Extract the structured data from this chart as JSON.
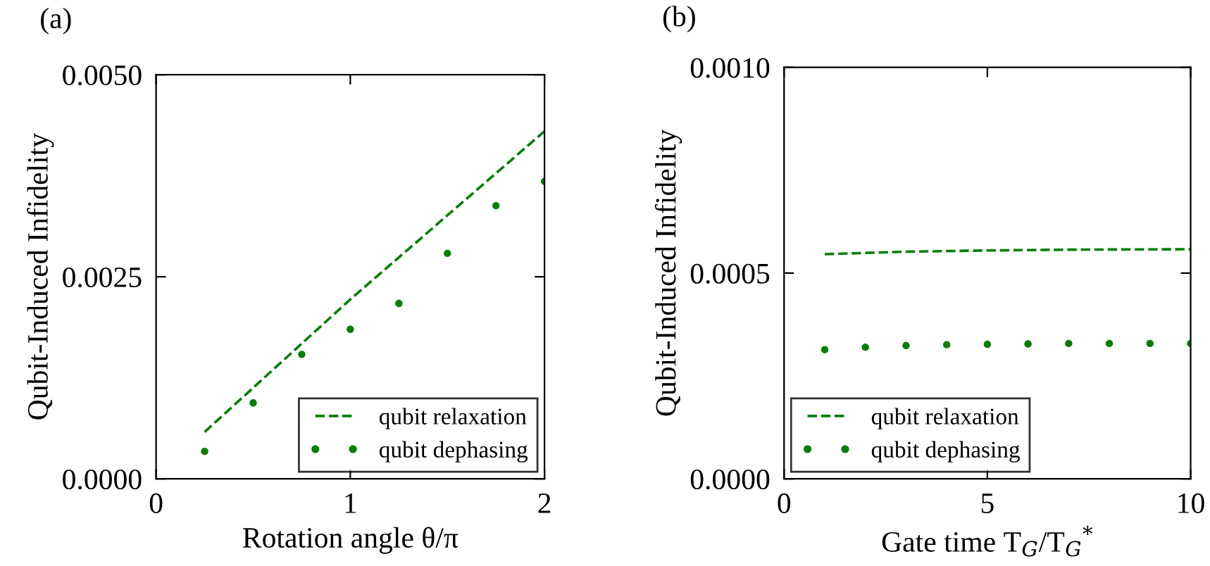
{
  "chart_data": [
    {
      "type": "line",
      "title": "(a)",
      "xlabel": "Rotation angle θ/π",
      "ylabel": "Qubit-Induced Infidelity",
      "xlim": [
        0,
        2
      ],
      "ylim": [
        0,
        0.005
      ],
      "xticks": [
        0,
        1,
        2
      ],
      "yticks": [
        {
          "value": 0,
          "label": "0.0000"
        },
        {
          "value": 0.0025,
          "label": "0.0025"
        },
        {
          "value": 0.005,
          "label": "0.0050"
        }
      ],
      "legend": "bottom right",
      "series": [
        {
          "name": "qubit relaxation",
          "line_style": "dashed",
          "color": "#008000",
          "x": [
            0.25,
            1.0,
            2.0
          ],
          "values": [
            0.00058,
            0.00222,
            0.0043
          ]
        },
        {
          "name": "qubit dephasing",
          "type": "scatter",
          "marker": "circle",
          "color": "#008000",
          "x": [
            0.25,
            0.5,
            0.75,
            1.0,
            1.25,
            1.5,
            1.75,
            2.0
          ],
          "values": [
            0.00034,
            0.00094,
            0.00154,
            0.00185,
            0.00217,
            0.00279,
            0.00338,
            0.00368
          ]
        }
      ]
    },
    {
      "type": "line",
      "title": "(b)",
      "xlabel": "Gate time T$_{G}$/T$_{G}$$^{*}$",
      "ylabel": "Qubit-Induced Infidelity",
      "xlim": [
        0,
        10
      ],
      "ylim": [
        0,
        0.001
      ],
      "xticks": [
        0,
        5,
        10
      ],
      "yticks": [
        {
          "value": 0,
          "label": "0.0000"
        },
        {
          "value": 0.0005,
          "label": "0.0005"
        },
        {
          "value": 0.001,
          "label": "0.0010"
        }
      ],
      "legend": "bottom left",
      "series": [
        {
          "name": "qubit relaxation",
          "line_style": "dashed",
          "color": "#008000",
          "x": [
            1,
            3,
            5,
            7,
            10
          ],
          "values": [
            0.000546,
            0.000552,
            0.000555,
            0.000557,
            0.000558
          ]
        },
        {
          "name": "qubit dephasing",
          "type": "scatter",
          "marker": "circle",
          "color": "#008000",
          "x": [
            1,
            2,
            3,
            4,
            5,
            6,
            7,
            8,
            9,
            10
          ],
          "values": [
            0.000314,
            0.00032,
            0.000324,
            0.000326,
            0.000327,
            0.000328,
            0.000329,
            0.000329,
            0.000329,
            0.000329
          ]
        }
      ]
    }
  ]
}
